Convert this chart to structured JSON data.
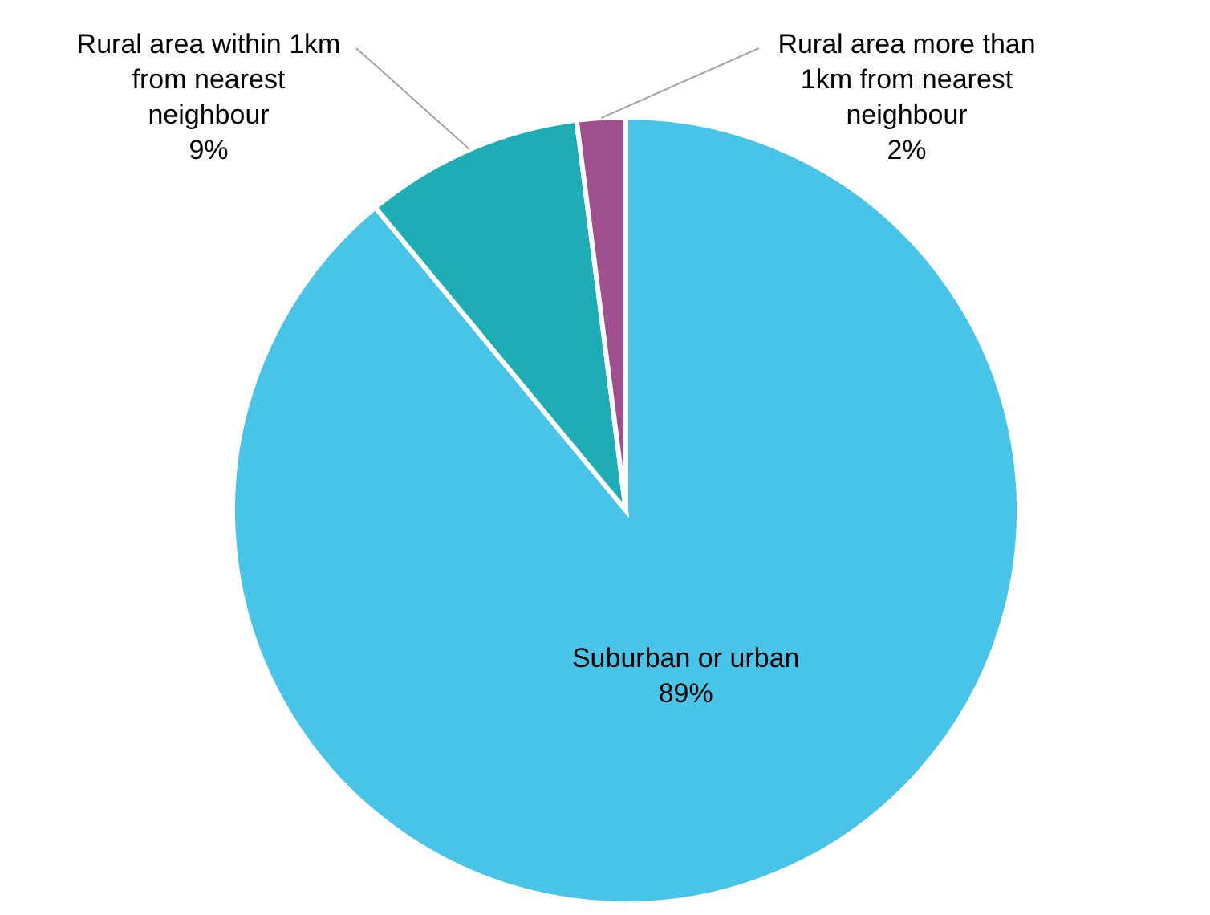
{
  "chart_data": {
    "type": "pie",
    "categories": [
      "Suburban or urban",
      "Rural area within 1km from nearest neighbour",
      "Rural area more than 1km from nearest neighbour"
    ],
    "values": [
      89,
      9,
      2
    ],
    "colors": [
      "#47c4e7",
      "#1eadb5",
      "#a1508f"
    ],
    "value_labels": [
      "89%",
      "9%",
      "2%"
    ]
  }
}
